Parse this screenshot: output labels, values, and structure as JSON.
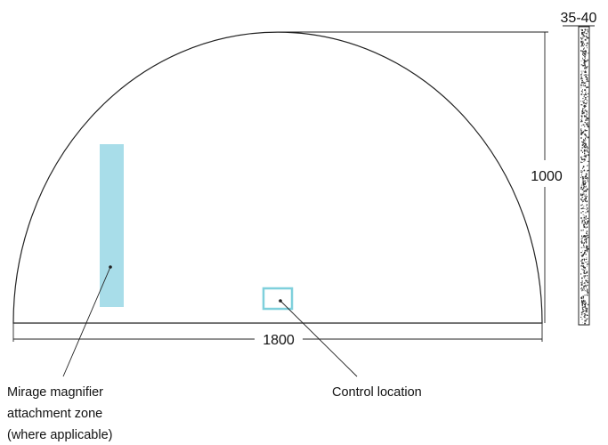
{
  "dimensions": {
    "width": "1800",
    "height": "1000",
    "depth": "35-40"
  },
  "labels": {
    "magnifier_zone": [
      "Mirage magnifier",
      "attachment zone",
      "(where applicable)"
    ],
    "control_location": "Control location"
  },
  "colors": {
    "magnifier_zone_fill": "#a8dde9",
    "control_box_stroke": "#7fd0dc",
    "line": "#222222",
    "side_texture": "#333333"
  }
}
